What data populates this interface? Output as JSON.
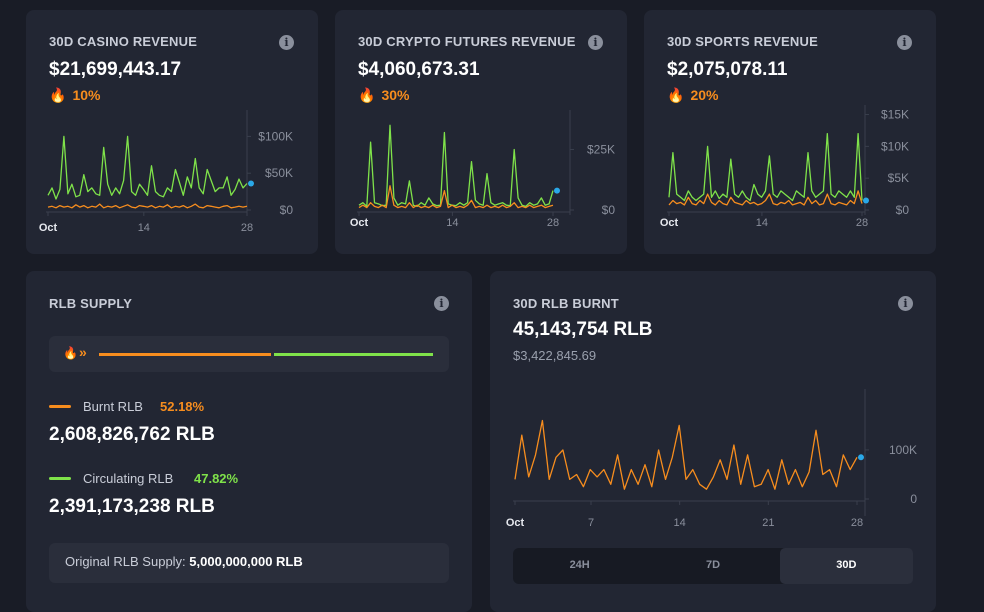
{
  "cards": [
    {
      "title": "30D CASINO REVENUE",
      "value": "$21,699,443.17",
      "pct": "10%"
    },
    {
      "title": "30D CRYPTO FUTURES REVENUE",
      "value": "$4,060,673.31",
      "pct": "30%"
    },
    {
      "title": "30D SPORTS REVENUE",
      "value": "$2,075,078.11",
      "pct": "20%"
    }
  ],
  "colors": {
    "green": "#7fe24a",
    "orange": "#f78d1e",
    "dot": "#2aa8e8",
    "axis": "#8a8f9c"
  },
  "chart_data": [
    {
      "type": "line",
      "y_ticks": [
        "$100K",
        "$50K",
        "$0"
      ],
      "y_tick_values": [
        100000,
        50000,
        0
      ],
      "x_ticks": [
        "Oct",
        "14",
        "28"
      ],
      "x_tick_days": [
        1,
        14,
        28
      ],
      "ylim": [
        0,
        125000
      ],
      "xlim": [
        1,
        28
      ],
      "series": [
        {
          "color": "green",
          "values": [
            20000,
            30000,
            15000,
            28000,
            100000,
            22000,
            35000,
            18000,
            20000,
            48000,
            25000,
            30000,
            22000,
            20000,
            85000,
            35000,
            20000,
            30000,
            22000,
            40000,
            100000,
            25000,
            20000,
            35000,
            28000,
            20000,
            60000,
            25000,
            20000,
            18000,
            30000,
            25000,
            55000,
            38000,
            20000,
            45000,
            30000,
            70000,
            30000,
            22000,
            55000,
            40000,
            25000,
            30000,
            30000,
            45000,
            20000,
            28000,
            42000,
            30000,
            36000
          ]
        },
        {
          "color": "orange",
          "values": [
            4000,
            5000,
            3000,
            6000,
            4000,
            5000,
            3000,
            7000,
            4000,
            6000,
            3000,
            5000,
            4000,
            8000,
            3000,
            5000,
            4000,
            6000,
            3000,
            5000,
            7000,
            4000,
            3000,
            6000,
            5000,
            4000,
            6000,
            3000,
            5000,
            4000,
            7000,
            3000,
            5000,
            4000,
            6000,
            3000,
            5000,
            8000,
            4000,
            3000,
            6000,
            5000,
            4000,
            3000,
            5000,
            6000,
            3000,
            4000,
            5000,
            4000,
            5000
          ]
        }
      ]
    },
    {
      "type": "line",
      "y_ticks": [
        "$25K",
        "$0"
      ],
      "y_tick_values": [
        25000,
        0
      ],
      "x_ticks": [
        "Oct",
        "14",
        "28"
      ],
      "x_tick_days": [
        1,
        14,
        28
      ],
      "ylim": [
        0,
        38000
      ],
      "xlim": [
        1,
        28
      ],
      "series": [
        {
          "color": "green",
          "values": [
            2000,
            3000,
            1500,
            28000,
            3000,
            2500,
            1800,
            2000,
            35000,
            5000,
            2000,
            3000,
            2500,
            12000,
            2000,
            1500,
            3000,
            2000,
            5000,
            2500,
            1800,
            2000,
            32000,
            2500,
            2000,
            1800,
            3000,
            2000,
            3000,
            20000,
            4000,
            2500,
            2000,
            15000,
            3000,
            2000,
            2500,
            3000,
            2000,
            1800,
            25000,
            5000,
            2000,
            1500,
            3000,
            2000,
            2500,
            5000,
            2000,
            2500,
            8000
          ]
        },
        {
          "color": "orange",
          "values": [
            1000,
            2000,
            1000,
            3000,
            1500,
            1000,
            2000,
            1000,
            10000,
            2000,
            1000,
            1500,
            1000,
            3000,
            1000,
            2000,
            1000,
            1500,
            1000,
            2000,
            1000,
            1500,
            8000,
            1000,
            2000,
            1000,
            1500,
            1000,
            2000,
            4000,
            1000,
            1500,
            1000,
            2000,
            1000,
            1500,
            1000,
            2000,
            1000,
            1500,
            3000,
            1000,
            1500,
            1000,
            2000,
            1000,
            1500,
            2000,
            1000,
            1500,
            2000
          ]
        }
      ]
    },
    {
      "type": "line",
      "y_ticks": [
        "$15K",
        "$10K",
        "$5K",
        "$0"
      ],
      "y_tick_values": [
        15000,
        10000,
        5000,
        0
      ],
      "x_ticks": [
        "Oct",
        "14",
        "28"
      ],
      "x_tick_days": [
        1,
        14,
        28
      ],
      "ylim": [
        0,
        16500
      ],
      "xlim": [
        1,
        28
      ],
      "series": [
        {
          "color": "green",
          "values": [
            2000,
            9000,
            2500,
            2000,
            1500,
            3000,
            2000,
            1500,
            2000,
            2500,
            10000,
            2000,
            3000,
            1800,
            2500,
            2000,
            8000,
            2500,
            2000,
            3000,
            2000,
            1500,
            4000,
            2500,
            2000,
            3000,
            8500,
            2500,
            2000,
            3000,
            2500,
            2000,
            1500,
            3000,
            2500,
            2000,
            9000,
            3000,
            2000,
            2500,
            3000,
            12000,
            2500,
            2000,
            3000,
            2500,
            2000,
            3000,
            2000,
            12000,
            1500
          ]
        },
        {
          "color": "orange",
          "values": [
            800,
            1500,
            1000,
            1200,
            800,
            2000,
            1000,
            800,
            1500,
            1000,
            2500,
            1200,
            800,
            1500,
            1000,
            800,
            2000,
            1200,
            1000,
            800,
            1500,
            1000,
            1200,
            800,
            1000,
            1500,
            2500,
            1000,
            800,
            1200,
            1000,
            1500,
            800,
            1000,
            1200,
            800,
            2000,
            1000,
            1500,
            800,
            1000,
            2500,
            1000,
            800,
            1200,
            1000,
            800,
            1500,
            1000,
            3000,
            1000
          ]
        }
      ]
    },
    {
      "type": "line",
      "y_ticks": [
        "100K",
        "0"
      ],
      "y_tick_values": [
        100000,
        0
      ],
      "x_ticks": [
        "Oct",
        "7",
        "14",
        "21",
        "28"
      ],
      "x_tick_days": [
        1,
        7,
        14,
        21,
        28
      ],
      "ylim": [
        0,
        210000
      ],
      "xlim": [
        1,
        28
      ],
      "series": [
        {
          "color": "orange",
          "values": [
            40000,
            130000,
            45000,
            90000,
            160000,
            40000,
            85000,
            100000,
            40000,
            50000,
            25000,
            60000,
            45000,
            60000,
            30000,
            90000,
            20000,
            60000,
            30000,
            70000,
            25000,
            100000,
            40000,
            85000,
            150000,
            40000,
            60000,
            30000,
            20000,
            45000,
            80000,
            40000,
            110000,
            30000,
            90000,
            25000,
            30000,
            60000,
            20000,
            80000,
            30000,
            60000,
            25000,
            55000,
            140000,
            50000,
            60000,
            25000,
            90000,
            60000,
            85000
          ]
        }
      ]
    }
  ],
  "supply": {
    "title": "RLB SUPPLY",
    "burnt_label": "Burnt RLB",
    "burnt_pct": "52.18%",
    "burnt_fraction": 0.5218,
    "burnt_value": "2,608,826,762 RLB",
    "circ_label": "Circulating RLB",
    "circ_pct": "47.82%",
    "circ_value": "2,391,173,238 RLB",
    "original_label": "Original RLB Supply:",
    "original_value": "5,000,000,000 RLB"
  },
  "burnt": {
    "title": "30D RLB BURNT",
    "value": "45,143,754 RLB",
    "usd": "$3,422,845.69",
    "tabs": [
      "24H",
      "7D",
      "30D"
    ],
    "active_tab": "30D"
  }
}
